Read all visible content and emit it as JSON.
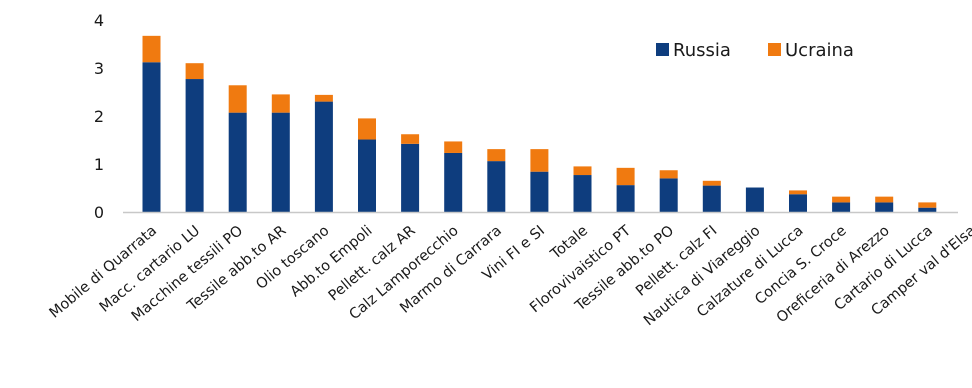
{
  "colors": {
    "russia": "#0e3d7e",
    "ucraina": "#f07a10",
    "axis": "#c8c8c8",
    "text": "#1a1a1a"
  },
  "chart_data": {
    "type": "bar",
    "stacked": true,
    "title": "",
    "xlabel": "",
    "ylabel": "",
    "ylim": [
      0,
      4
    ],
    "yticks": [
      "0",
      "1",
      "2",
      "3",
      "4"
    ],
    "grid": false,
    "legend_position": "top-right",
    "categories": [
      "Mobile di Quarrata",
      "Macc. cartario LU",
      "Macchine tessili PO",
      "Tessile abb.to AR",
      "Olio toscano",
      "Abb.to Empoli",
      "Pellett. calz AR",
      "Calz Lamporecchio",
      "Marmo di Carrara",
      "Vini FI e SI",
      "Totale",
      "Florovivaistico PT",
      "Tessile abb.to PO",
      "Pellett. calz FI",
      "Nautica di Viareggio",
      "Calzature di Lucca",
      "Concia S. Croce",
      "Oreficeria di Arezzo",
      "Cartario di Lucca",
      "Camper val d'Elsa"
    ],
    "series": [
      {
        "name": "Russia",
        "values": [
          3.12,
          2.77,
          2.07,
          2.07,
          2.3,
          1.51,
          1.42,
          1.23,
          1.06,
          0.84,
          0.77,
          0.56,
          0.7,
          0.55,
          0.51,
          0.37,
          0.2,
          0.2,
          0.09,
          0.0
        ]
      },
      {
        "name": "Ucraina",
        "values": [
          0.55,
          0.33,
          0.57,
          0.38,
          0.14,
          0.44,
          0.2,
          0.24,
          0.25,
          0.47,
          0.18,
          0.36,
          0.17,
          0.1,
          0.0,
          0.08,
          0.12,
          0.12,
          0.11,
          0.0
        ]
      }
    ]
  }
}
